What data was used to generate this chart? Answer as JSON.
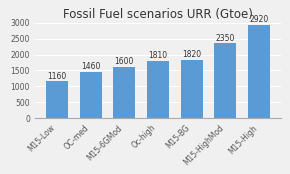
{
  "title": "Fossil Fuel scenarios URR (Gtoe)",
  "categories": [
    "M15-Low",
    "OC-med",
    "M15-6GMod",
    "Oc-high",
    "M15-BG",
    "M15-HighMod",
    "M15-High"
  ],
  "values": [
    1160,
    1460,
    1600,
    1810,
    1820,
    2350,
    2920
  ],
  "bar_color": "#5b9bd5",
  "ylim": [
    0,
    3000
  ],
  "yticks": [
    0,
    500,
    1000,
    1500,
    2000,
    2500,
    3000
  ],
  "background_color": "#f0f0f0",
  "plot_bg_color": "#f0f0f0",
  "title_fontsize": 8.5,
  "tick_fontsize": 5.5,
  "value_fontsize": 5.5,
  "bar_width": 0.65
}
